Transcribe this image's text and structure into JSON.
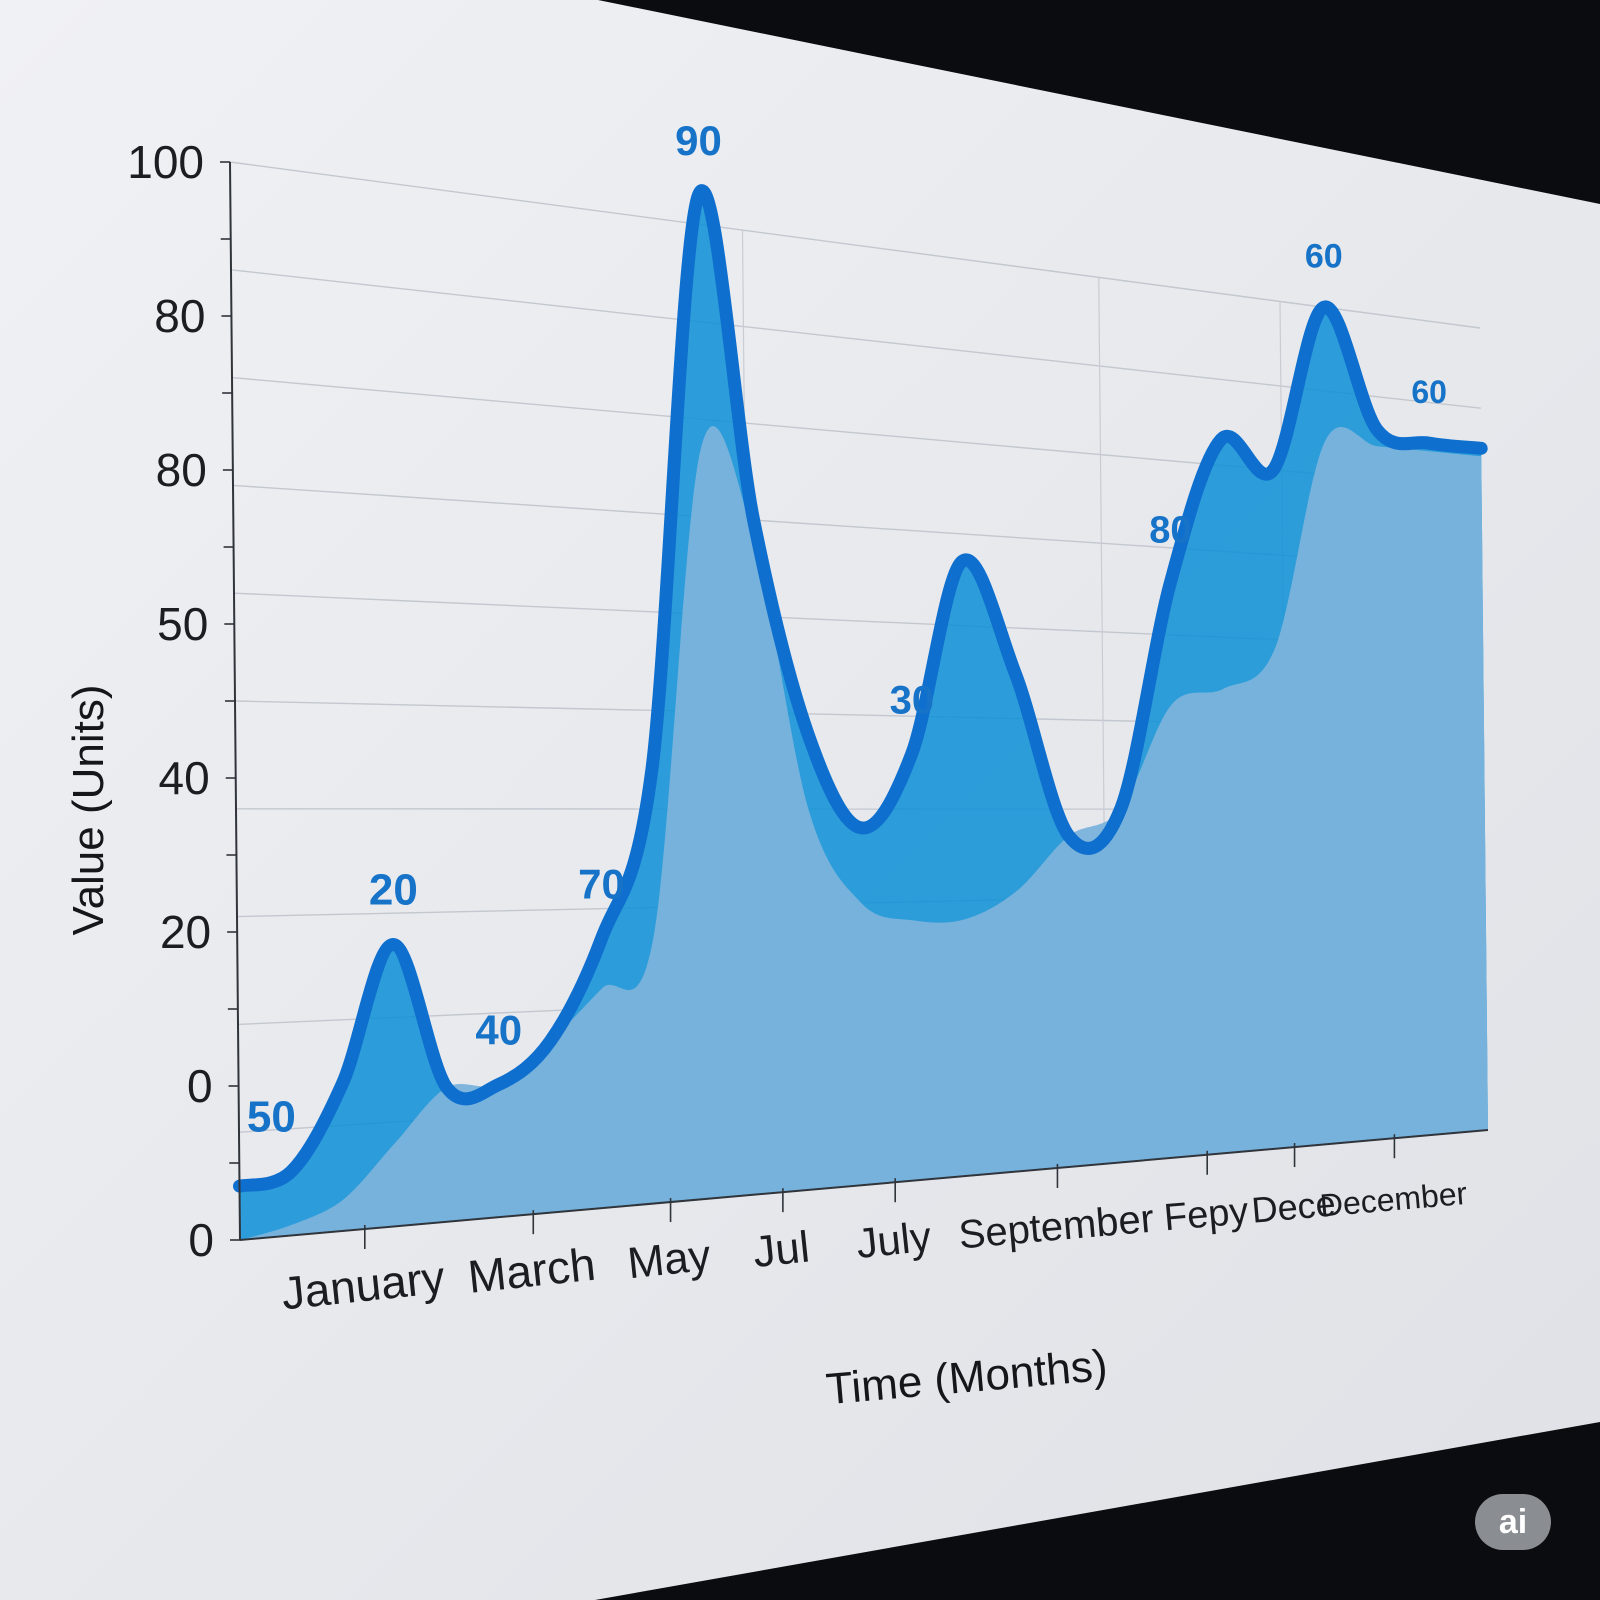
{
  "chart_data": {
    "type": "area",
    "title": "",
    "xlabel": "Time (Months)",
    "ylabel": "Value (Units)",
    "ylim": [
      0,
      100
    ],
    "y_tick_labels": [
      "0",
      "0",
      "20",
      "40",
      "50",
      "80",
      "80",
      "100"
    ],
    "x_tick_labels": [
      "January",
      "March",
      "May",
      "Jul",
      "July",
      "September",
      "Fepy",
      "Dece",
      "December"
    ],
    "series": [
      {
        "values": [
          5,
          6,
          14,
          27,
          13,
          13,
          17,
          27,
          44,
          103,
          70,
          48,
          38,
          46,
          67,
          55,
          37,
          40,
          66,
          83,
          80,
          100,
          86,
          85,
          85
        ]
      },
      {
        "values": [
          0,
          1,
          3,
          8,
          13,
          13,
          17,
          22,
          27,
          77,
          68,
          40,
          30,
          28,
          28,
          31,
          37,
          40,
          52,
          54,
          59,
          84,
          84,
          84,
          84
        ]
      }
    ],
    "data_labels": [
      "50",
      "20",
      "40",
      "70",
      "90",
      "30",
      "80",
      "60",
      "60"
    ],
    "grid": true,
    "legend": "none",
    "colors": {
      "line": "#0e6fce",
      "upper_fill": "#0a8fd6",
      "lower_fill": "#7ab3dc",
      "panel": "#e6e8ec"
    }
  },
  "badge": {
    "text": "ai"
  }
}
